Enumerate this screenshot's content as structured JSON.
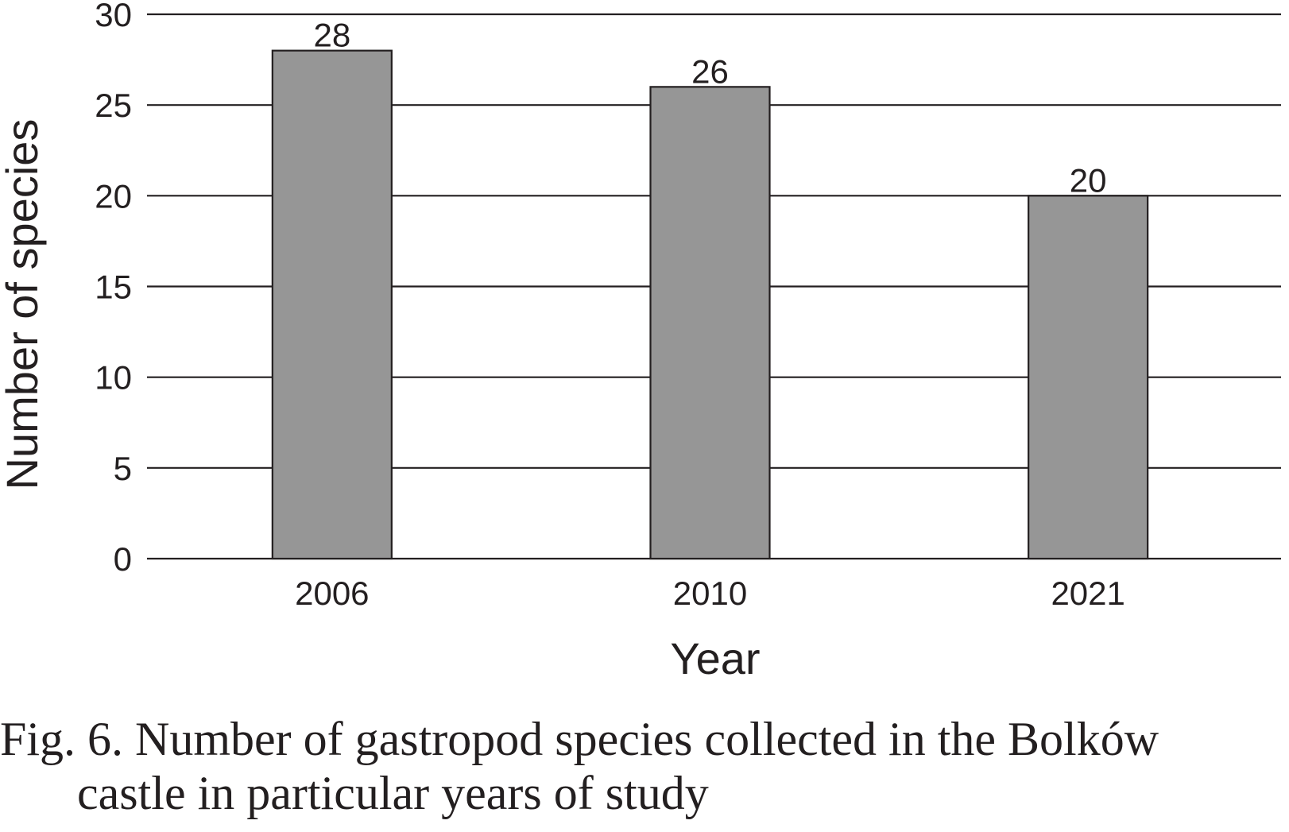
{
  "chart_data": {
    "type": "bar",
    "categories": [
      "2006",
      "2010",
      "2021"
    ],
    "values": [
      28,
      26,
      20
    ],
    "data_labels": [
      "28",
      "26",
      "20"
    ],
    "xlabel": "Year",
    "ylabel": "Number of species",
    "ylim": [
      0,
      30
    ],
    "yticks": [
      "0",
      "5",
      "10",
      "15",
      "20",
      "25",
      "30"
    ],
    "grid": "horizontal",
    "bar_color": "#969696",
    "bar_edge_color": "#231f20",
    "legend": "none"
  },
  "caption": {
    "line1": "Fig. 6. Number of gastropod species collected in the Bolków",
    "line2": "castle in particular years of study"
  }
}
